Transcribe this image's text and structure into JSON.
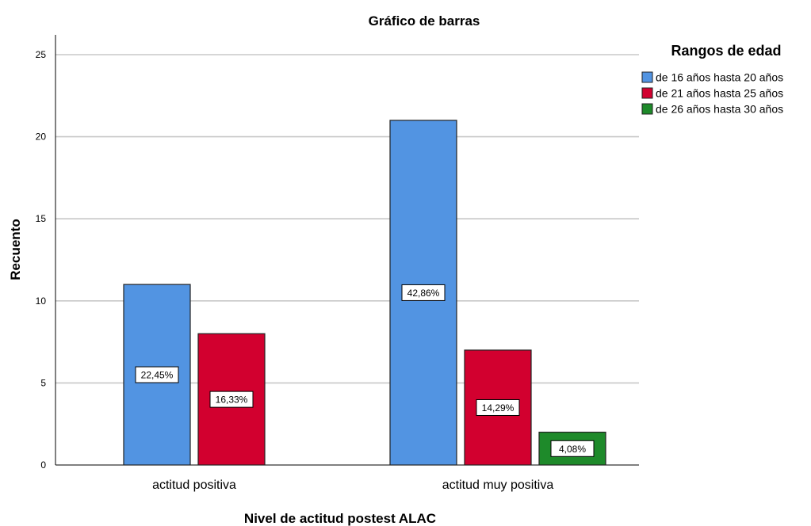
{
  "chart_data": {
    "type": "bar",
    "title": "Gráfico de barras",
    "xlabel": "Nivel de actitud postest ALAC",
    "ylabel": "Recuento",
    "ylim": [
      0,
      26
    ],
    "yticks": [
      0,
      5,
      10,
      15,
      20,
      25
    ],
    "grid": true,
    "categories": [
      "actitud positiva",
      "actitud muy positiva"
    ],
    "legend": {
      "title": "Rangos de edad",
      "placement": "top-right"
    },
    "series": [
      {
        "name": "de 16 años hasta 20 años",
        "color": "#5294e2",
        "values": [
          11,
          21
        ],
        "labels": [
          "22,45%",
          "42,86%"
        ]
      },
      {
        "name": "de 21 años hasta 25 años",
        "color": "#d2002f",
        "values": [
          8,
          7
        ],
        "labels": [
          "16,33%",
          "14,29%"
        ]
      },
      {
        "name": "de 26 años hasta 30 años",
        "color": "#1e8a2a",
        "values": [
          0,
          2
        ],
        "labels": [
          "",
          "4,08%"
        ]
      }
    ]
  }
}
